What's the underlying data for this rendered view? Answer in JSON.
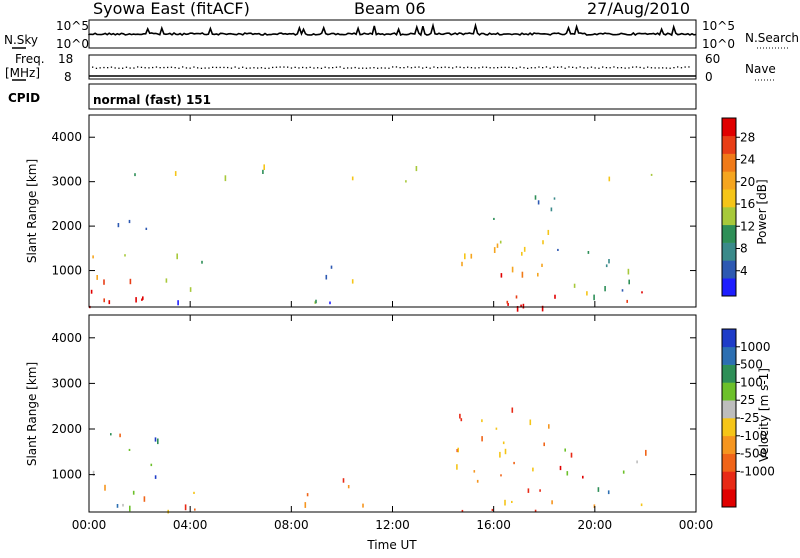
{
  "header": {
    "station": "Syowa East (fitACF)",
    "beam": "Beam 06",
    "date": "27/Aug/2010"
  },
  "strip_labels": {
    "nsky": "N.Sky",
    "nsky_hi": "10^5",
    "nsky_lo": "10^0",
    "nsearch": "N.Search",
    "nsearch_hi": "10^5",
    "nsearch_lo": "10^0",
    "freq_line1": "Freq.",
    "freq_line2": "[MHz]",
    "freq_hi": "18",
    "freq_lo": "8",
    "nave": "Nave",
    "nave_hi": "60",
    "nave_lo": "0",
    "cpid": "CPID",
    "cpid_value": "normal (fast) 151"
  },
  "chart_data": [
    {
      "type": "heatmap",
      "panel": "power",
      "ylabel": "Slant Range [km]",
      "xlabel": "",
      "ylim": [
        180,
        4500
      ],
      "y_ticks": [
        "1000",
        "2000",
        "3000",
        "4000"
      ],
      "x_ticks": [],
      "colorbar": {
        "label": "Power [dB]",
        "ticks": [
          "4",
          "8",
          "12",
          "16",
          "20",
          "24",
          "28"
        ],
        "colors": [
          "#1e1eff",
          "#2d59b2",
          "#3a8a8a",
          "#2e8f57",
          "#a7c93a",
          "#f5c518",
          "#f5a51f",
          "#f07a18",
          "#e83e16",
          "#e00000"
        ]
      },
      "regions": [
        {
          "x0": 0.0,
          "x1": 2.8,
          "y0": 200,
          "y1": 2200,
          "level": "high"
        },
        {
          "x0": 3.0,
          "x1": 4.5,
          "y0": 200,
          "y1": 1500,
          "level": "mid"
        },
        {
          "x0": 8.5,
          "x1": 11.0,
          "y0": 300,
          "y1": 1200,
          "level": "mid"
        },
        {
          "x0": 14.5,
          "x1": 18.5,
          "y0": 200,
          "y1": 2800,
          "level": "high"
        },
        {
          "x0": 18.5,
          "x1": 21.8,
          "y0": 400,
          "y1": 1600,
          "level": "mid"
        },
        {
          "x0": 21.0,
          "x1": 22.0,
          "y0": 300,
          "y1": 1200,
          "level": "high"
        },
        {
          "x0": 0.0,
          "x1": 24.0,
          "y0": 3000,
          "y1": 3400,
          "level": "low"
        }
      ]
    },
    {
      "type": "heatmap",
      "panel": "velocity",
      "ylabel": "Slant Range [km]",
      "xlabel": "Time UT",
      "ylim": [
        180,
        4500
      ],
      "y_ticks": [
        "1000",
        "2000",
        "3000",
        "4000"
      ],
      "x_ticks": [
        "00:00",
        "04:00",
        "08:00",
        "12:00",
        "16:00",
        "20:00",
        "00:00"
      ],
      "colorbar": {
        "label": "Velocity [m s-1]",
        "ticks": [
          "1000",
          "500",
          "100",
          "25",
          "-25",
          "-100",
          "-500",
          "-1000"
        ],
        "colors": [
          "#1e3cc8",
          "#2c6fb2",
          "#2e8f57",
          "#6cc02a",
          "#bdbdbd",
          "#f5c518",
          "#f5951f",
          "#f06418",
          "#e82a16",
          "#e00000"
        ]
      },
      "regions": [
        {
          "x0": 0.0,
          "x1": 3.0,
          "y0": 200,
          "y1": 2000,
          "level": "mixed"
        },
        {
          "x0": 3.0,
          "x1": 4.5,
          "y0": 200,
          "y1": 1200,
          "level": "neg"
        },
        {
          "x0": 8.5,
          "x1": 11.0,
          "y0": 300,
          "y1": 1000,
          "level": "neg"
        },
        {
          "x0": 14.5,
          "x1": 18.5,
          "y0": 200,
          "y1": 2800,
          "level": "neg"
        },
        {
          "x0": 18.5,
          "x1": 22.0,
          "y0": 300,
          "y1": 1600,
          "level": "mixed"
        }
      ]
    }
  ]
}
